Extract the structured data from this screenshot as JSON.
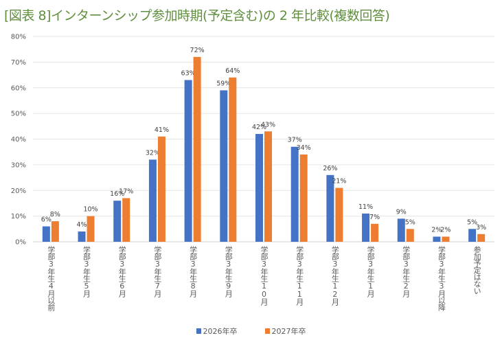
{
  "chart_data": {
    "type": "bar",
    "title": "[図表 8]インターンシップ参加時期(予定含む)の 2 年比較(複数回答)",
    "categories": [
      "学部3年生4月以前",
      "学部3年生5月",
      "学部3年生6月",
      "学部3年生7月",
      "学部3年生8月",
      "学部3年生9月",
      "学部3年生10月",
      "学部3年生11月",
      "学部3年生12月",
      "学部3年生1月",
      "学部3年生2月",
      "学部3年生3月以降",
      "参加予定はない"
    ],
    "series": [
      {
        "name": "2026年卒",
        "color": "#4472c4",
        "values": [
          6,
          4,
          16,
          32,
          63,
          59,
          42,
          37,
          26,
          11,
          9,
          2,
          5
        ]
      },
      {
        "name": "2027年卒",
        "color": "#ed7d31",
        "values": [
          8,
          10,
          17,
          41,
          72,
          64,
          43,
          34,
          21,
          7,
          5,
          2,
          3
        ]
      }
    ],
    "ylim": [
      0,
      80
    ],
    "yticks": [
      "0%",
      "10%",
      "20%",
      "30%",
      "40%",
      "50%",
      "60%",
      "70%",
      "80%"
    ],
    "grid": true,
    "legend": "bottom",
    "title_color": "#5f8f3e"
  }
}
